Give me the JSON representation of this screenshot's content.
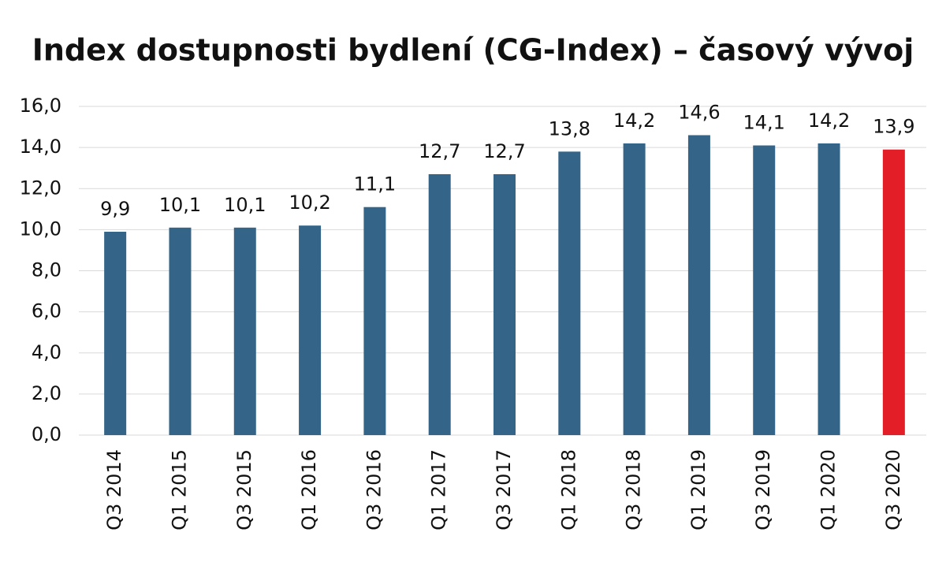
{
  "chart_data": {
    "type": "bar",
    "title": "Index dostupnosti bydlení (CG-Index) – časový vývoj",
    "categories": [
      "Q3 2014",
      "Q1 2015",
      "Q3 2015",
      "Q1 2016",
      "Q3 2016",
      "Q1 2017",
      "Q3 2017",
      "Q1 2018",
      "Q3 2018",
      "Q1 2019",
      "Q3 2019",
      "Q1 2020",
      "Q3 2020"
    ],
    "values": [
      9.9,
      10.1,
      10.1,
      10.2,
      11.1,
      12.7,
      12.7,
      13.8,
      14.2,
      14.6,
      14.1,
      14.2,
      13.9
    ],
    "value_labels": [
      "9,9",
      "10,1",
      "10,1",
      "10,2",
      "11,1",
      "12,7",
      "12,7",
      "13,8",
      "14,2",
      "14,6",
      "14,1",
      "14,2",
      "13,9"
    ],
    "colors": [
      "#346488",
      "#346488",
      "#346488",
      "#346488",
      "#346488",
      "#346488",
      "#346488",
      "#346488",
      "#346488",
      "#346488",
      "#346488",
      "#346488",
      "#e41e26"
    ],
    "ylim": [
      0,
      16
    ],
    "yticks": [
      {
        "value": 0,
        "label": "0,0"
      },
      {
        "value": 2,
        "label": "2,0"
      },
      {
        "value": 4,
        "label": "4,0"
      },
      {
        "value": 6,
        "label": "6,0"
      },
      {
        "value": 8,
        "label": "8,0"
      },
      {
        "value": 10,
        "label": "10,0"
      },
      {
        "value": 12,
        "label": "12,0"
      },
      {
        "value": 14,
        "label": "14,0"
      },
      {
        "value": 16,
        "label": "16,0"
      }
    ],
    "grid": true
  }
}
